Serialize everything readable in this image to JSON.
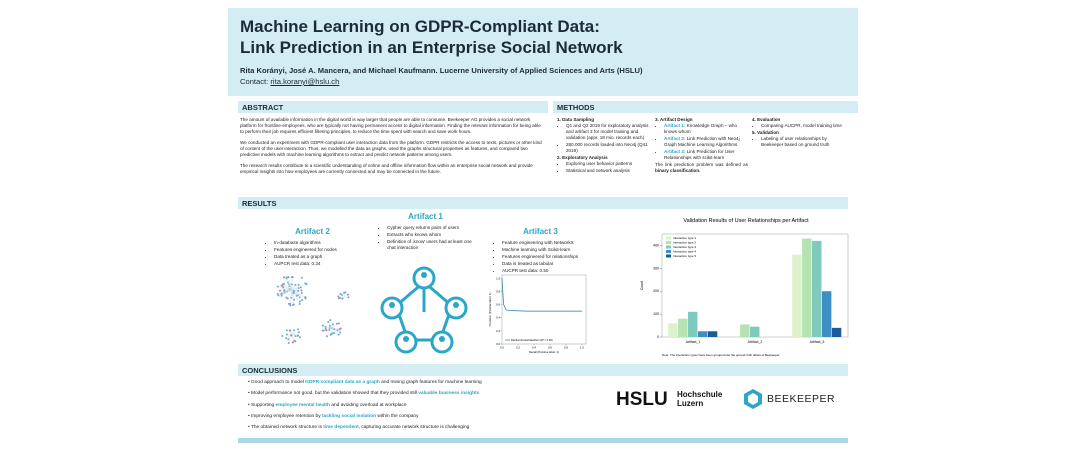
{
  "header": {
    "title": [
      "Machine Learning on GDPR-Compliant Data:",
      "Link Prediction in an Enterprise Social Network"
    ],
    "authors": "Rita Korányi, José A. Mancera, and Michael Kaufmann. Lucerne University of Applied Sciences and Arts (HSLU)",
    "contact_label": "Contact:",
    "email": "rita.koranyi@hslu.ch"
  },
  "abstract": {
    "heading": "ABSTRACT",
    "paragraphs": [
      "The amount of available information in the digital world is way larger that people are able to consume. Beekeeper AG provides a social network platform for frontline-employees, who are typically not having permanent access to digital information. Finding the relevant information for being able to perform their job requires efficient filtering principles, to reduce the time spent with search and save work hours.",
      "We conducted an experiment with GDPR-compliant user interaction data from the platform. GDPR restricts the access to texts, pictures or other kind of content of the user interaction. Thus, we modelled the data as graphs, used the graphs structural properties as features, and compared two predictive models with machine learning algorithms to extract and predict network patterns among users.",
      "The research results contribute to a scientific understanding of online and offline information flow within an enterprise social network and provide empirical insights into how employees are currently connected and may be connected in the future."
    ]
  },
  "methods": {
    "heading": "METHODS",
    "columns": [
      [
        {
          "title": "1. Data Sampling",
          "bullets": [
            "Q1 and Q2 2019 for exploratory analysis and artifact 3 for model training and validation (appr. 18 mio. records each)",
            "280.000 records loaded into Neo4j (Q41 2019)"
          ]
        },
        {
          "title": "2. Exploratory Analysis",
          "bullets": [
            "Exploring user behavior patterns",
            "Statistical and network analysis"
          ]
        }
      ],
      [
        {
          "title": "3. Artifact Design",
          "bullets": [
            {
              "lead": "Artifact 1:",
              "text": "Knowledge Graph – who knows whom"
            },
            {
              "lead": "Artifact 2:",
              "text": "Link Prediction with Neo4j Graph Machine Learning Algorithms"
            },
            {
              "lead": "Artifact 3:",
              "text": "Link Prediction for User Relationships with scikit-learn"
            }
          ],
          "note": "The link prediction problem was defined as",
          "note_bold": "binary classification."
        }
      ],
      [
        {
          "title": "4. Evaluation",
          "bullets": [
            "Comparing AUCPR, model training time"
          ]
        },
        {
          "title": "5. Validation",
          "bullets": [
            "Labeling of user relationships by Beekeeper based on ground truth"
          ]
        }
      ]
    ]
  },
  "results": {
    "heading": "RESULTS",
    "artifacts": [
      {
        "title": "Artifact 2",
        "bullets": [
          "In-database algorithms",
          "Features engineered for nodes",
          "Data treated as a graph",
          "AUPCR test data: 0.34"
        ]
      },
      {
        "title": "Artifact 1",
        "bullets": [
          "Cypher query returns pairs of users",
          "Extracts who knows whom",
          "Definition of ‚know' users had at least one chat interaction"
        ]
      },
      {
        "title": "Artifact 3",
        "bullets": [
          "Feature engineering with NetworkX",
          "Machine learning with Scikit-learn",
          "Features engineered for relationships",
          "Data is treated as tabular",
          "AUCPR test data: 0.50"
        ]
      }
    ]
  },
  "chart_data": [
    {
      "type": "bar",
      "title": "Validation Results of User Relationships per Artifact",
      "y_label": "Count",
      "categories": [
        "Artifact_1",
        "Artifact_2",
        "Artifact_3"
      ],
      "series": [
        {
          "name": "Interaction type 1",
          "color": "#dcf2cc",
          "values": [
            60,
            null,
            360
          ]
        },
        {
          "name": "Interaction type 2",
          "color": "#b4e2b0",
          "values": [
            80,
            55,
            430
          ]
        },
        {
          "name": "Interaction type 3",
          "color": "#7ecbbd",
          "values": [
            110,
            45,
            420
          ]
        },
        {
          "name": "Interaction type 4",
          "color": "#3f8fc4",
          "values": [
            25,
            null,
            200
          ]
        },
        {
          "name": "Interaction type 5",
          "color": "#1c5a9a",
          "values": [
            25,
            null,
            40
          ]
        }
      ],
      "ylim": [
        0,
        450
      ],
      "yticks": [
        0,
        100,
        200,
        300,
        400
      ],
      "note": "Note: The interaction types have been grouped into the ground truth labels of Beekeeper"
    },
    {
      "type": "line",
      "x_label": "Recall (Positive label: 1)",
      "y_label": "Precision (Positive label: 1)",
      "series": [
        {
          "name": "RandomForestClassifier (AP = 0.50)",
          "color": "#1f77b4",
          "x": [
            0,
            0.02,
            0.05,
            0.1,
            0.3,
            0.6,
            0.9,
            1.0
          ],
          "values": [
            1.0,
            0.6,
            0.52,
            0.51,
            0.5,
            0.5,
            0.5,
            0.5
          ]
        }
      ],
      "xlim": [
        0,
        1.05
      ],
      "ylim": [
        0,
        1.05
      ],
      "xticks": [
        {
          "value": 0,
          "label": "0.0"
        },
        0.2,
        0.4,
        0.6,
        0.8,
        {
          "value": 1,
          "label": "1.0"
        }
      ],
      "yticks": [
        {
          "value": 0,
          "label": "0.0"
        },
        0.2,
        0.4,
        0.6,
        0.8,
        {
          "value": 1,
          "label": "1.0"
        }
      ]
    }
  ],
  "conclusions": {
    "heading": "CONCLUSIONS",
    "items": [
      {
        "before": "Good approach to model",
        "highlight": "GDPR-compliant data as a graph",
        "after": "and mining graph features for machine learning"
      },
      {
        "before": "Model performance not good, but the validation showed that they provided still",
        "highlight": "valuable business insights"
      },
      {
        "before": "Supporting",
        "highlight": "employee mental health",
        "after": "and avoiding overload at workplace"
      },
      {
        "before": "Improving employee retention by",
        "highlight": "tackling social isolation",
        "after": "within the company"
      },
      {
        "before": "The obtained network structure is",
        "highlight": "time dependent",
        "after": ", capturing accurate network structure is challenging"
      }
    ]
  },
  "logos": {
    "hslu": "HSLU",
    "hslu_line1": "Hochschule",
    "hslu_line2": "Luzern",
    "beekeeper": "BEEKEEPER"
  }
}
